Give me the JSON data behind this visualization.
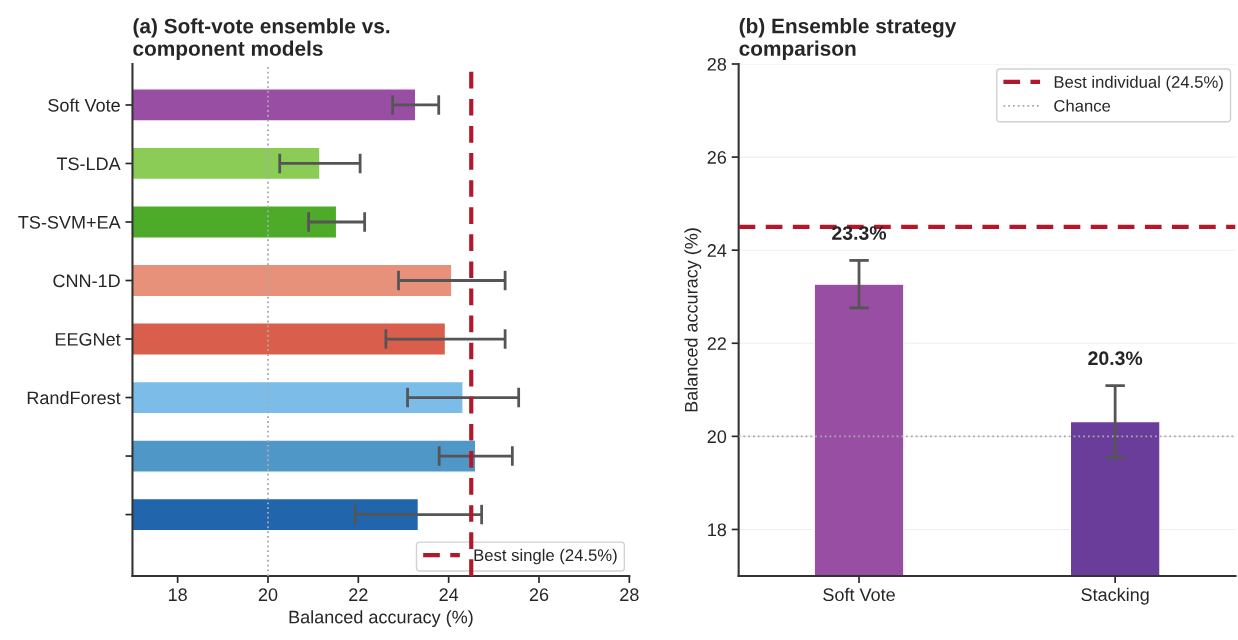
{
  "chart_data": [
    {
      "type": "bar",
      "orientation": "horizontal",
      "title": "(a) Soft-vote ensemble vs.\ncomponent models",
      "xlabel": "Balanced accuracy (%)",
      "categories": [
        "Soft Vote",
        "TS-LDA",
        "TS-SVM+EA",
        "CNN-1D",
        "EEGNet",
        "RandForest",
        null,
        null
      ],
      "values": [
        23.27,
        21.15,
        21.52,
        24.07,
        23.93,
        24.32,
        24.6,
        23.33
      ],
      "errors": [
        0.51,
        0.89,
        0.62,
        1.18,
        1.32,
        1.23,
        0.81,
        1.4
      ],
      "colors": [
        "#984ea3",
        "#8bcc57",
        "#4dab29",
        "#e8917a",
        "#d95f4c",
        "#7bbce8",
        "#4f97c7",
        "#2166ac"
      ],
      "xlim": [
        17,
        28
      ],
      "xticks": [
        18,
        20,
        22,
        24,
        26,
        28
      ],
      "ref_lines": [
        {
          "axis": "x",
          "value": 24.5,
          "label": "Best single (24.5%)",
          "color": "#b2182b",
          "line_style": "dashed"
        },
        {
          "axis": "x",
          "value": 20,
          "label": null,
          "color": "#aaaaaa",
          "line_style": "dotted"
        }
      ],
      "grid": false,
      "legend": "bottom right"
    },
    {
      "type": "bar",
      "title": "(b) Ensemble strategy\ncomparison",
      "ylabel": "Balanced accuracy (%)",
      "categories": [
        "Soft Vote",
        "Stacking"
      ],
      "values": [
        23.27,
        20.32
      ],
      "errors": [
        0.51,
        0.77
      ],
      "colors": [
        "#984ea3",
        "#6a3d9a"
      ],
      "value_labels": [
        "23.3%",
        "20.3%"
      ],
      "ylim": [
        17,
        28
      ],
      "yticks": [
        18,
        20,
        22,
        24,
        26,
        28
      ],
      "ref_lines": [
        {
          "axis": "y",
          "value": 24.5,
          "label": "Best individual (24.5%)",
          "color": "#b2182b",
          "line_style": "dashed"
        },
        {
          "axis": "y",
          "value": 20,
          "label": "Chance",
          "color": "#aaaaaa",
          "line_style": "dotted"
        }
      ],
      "grid": "y",
      "legend": "top right"
    }
  ]
}
